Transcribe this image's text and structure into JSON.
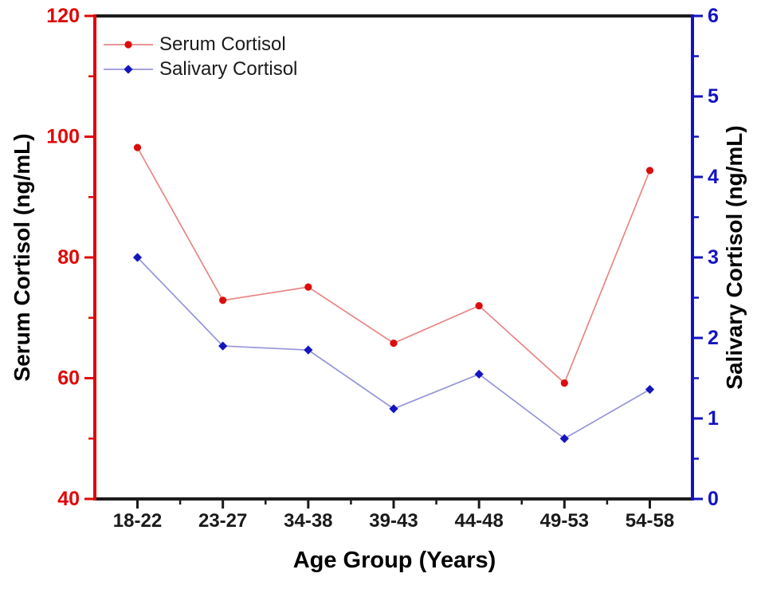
{
  "figure": {
    "background": "#ffffff"
  },
  "chart_data": {
    "type": "line",
    "title": "",
    "categories": [
      "18-22",
      "23-27",
      "34-38",
      "39-43",
      "44-48",
      "49-53",
      "54-58"
    ],
    "series": [
      {
        "name": "Serum Cortisol",
        "axis": "left",
        "marker": "circle",
        "marker_color": "#dc0d0d",
        "line_color": "#e88585",
        "values": [
          98.2,
          72.9,
          75.1,
          65.8,
          72.0,
          59.2,
          94.4
        ]
      },
      {
        "name": "Salivary Cortisol",
        "axis": "right",
        "marker": "diamond",
        "marker_color": "#1515bd",
        "line_color": "#9595dc",
        "values": [
          3.0,
          1.9,
          1.85,
          1.12,
          1.55,
          0.75,
          1.36
        ]
      }
    ],
    "x_axis": {
      "label": "Age Group (Years)",
      "color": "#1a1a1a",
      "tick_labels": [
        "18-22",
        "23-27",
        "34-38",
        "39-43",
        "44-48",
        "49-53",
        "54-58"
      ]
    },
    "left_axis": {
      "label": "Serum Cortisol (ng/mL)",
      "color": "#e00808",
      "min": 40,
      "max": 120,
      "major_ticks": [
        40,
        60,
        80,
        100,
        120
      ],
      "minor_ticks": [
        50,
        70,
        90,
        110
      ]
    },
    "right_axis": {
      "label": "Salivary Cortisol (ng/mL)",
      "color": "#1212c4",
      "min": 0,
      "max": 6,
      "major_ticks": [
        0,
        1,
        2,
        3,
        4,
        5,
        6
      ],
      "minor_ticks": [
        0.5,
        1.5,
        2.5,
        3.5,
        4.5,
        5.5
      ]
    },
    "legend": {
      "position": "top-left",
      "text_color": "#1a1a1a"
    },
    "grid": false
  }
}
